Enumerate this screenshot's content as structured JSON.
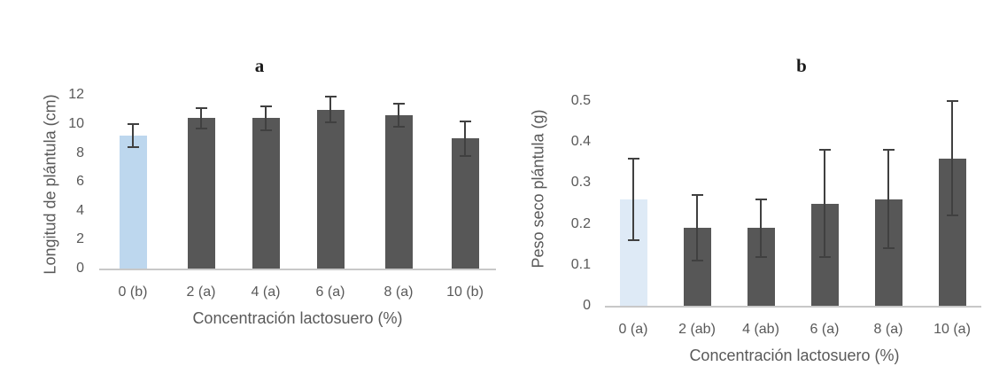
{
  "figure": {
    "background_color": "#ffffff",
    "panel_labels": [
      "a",
      "b"
    ]
  },
  "chart_data": [
    {
      "type": "bar",
      "title": "a",
      "xlabel": "Concentración lactosuero (%)",
      "ylabel": "Longitud de plántula (cm)",
      "categories": [
        "0 (b)",
        "2 (a)",
        "4 (a)",
        "6 (a)",
        "8 (a)",
        "10 (b)"
      ],
      "values": [
        9.2,
        10.4,
        10.4,
        11.0,
        10.6,
        9.0
      ],
      "errors": [
        0.8,
        0.7,
        0.8,
        0.9,
        0.8,
        1.2
      ],
      "bar_colors": [
        "#BDD7EE",
        "#575757",
        "#575757",
        "#575757",
        "#575757",
        "#575757"
      ],
      "ylim": [
        0,
        12
      ],
      "yticks": [
        0,
        2,
        4,
        6,
        8,
        10,
        12
      ],
      "ytick_labels": [
        "0",
        "2",
        "4",
        "6",
        "8",
        "10",
        "12"
      ],
      "grid": false,
      "legend": "none",
      "error_bar_color": "#404040",
      "axis_line_color": "#c8c8c8",
      "label_color": "#595959"
    },
    {
      "type": "bar",
      "title": "b",
      "xlabel": "Concentración lactosuero (%)",
      "ylabel": "Peso seco plántula (g)",
      "categories": [
        "0 (a)",
        "2 (ab)",
        "4 (ab)",
        "6 (a)",
        "8 (a)",
        "10 (a)"
      ],
      "values": [
        0.26,
        0.19,
        0.19,
        0.25,
        0.26,
        0.36
      ],
      "errors": [
        0.1,
        0.08,
        0.07,
        0.13,
        0.12,
        0.14
      ],
      "bar_colors": [
        "#DEEAF6",
        "#575757",
        "#575757",
        "#575757",
        "#575757",
        "#575757"
      ],
      "ylim": [
        0,
        0.5
      ],
      "yticks": [
        0,
        0.1,
        0.2,
        0.3,
        0.4,
        0.5
      ],
      "ytick_labels": [
        "0",
        "0.1",
        "0.2",
        "0.3",
        "0.4",
        "0.5"
      ],
      "grid": false,
      "legend": "none",
      "error_bar_color": "#404040",
      "axis_line_color": "#c8c8c8",
      "label_color": "#595959"
    }
  ]
}
